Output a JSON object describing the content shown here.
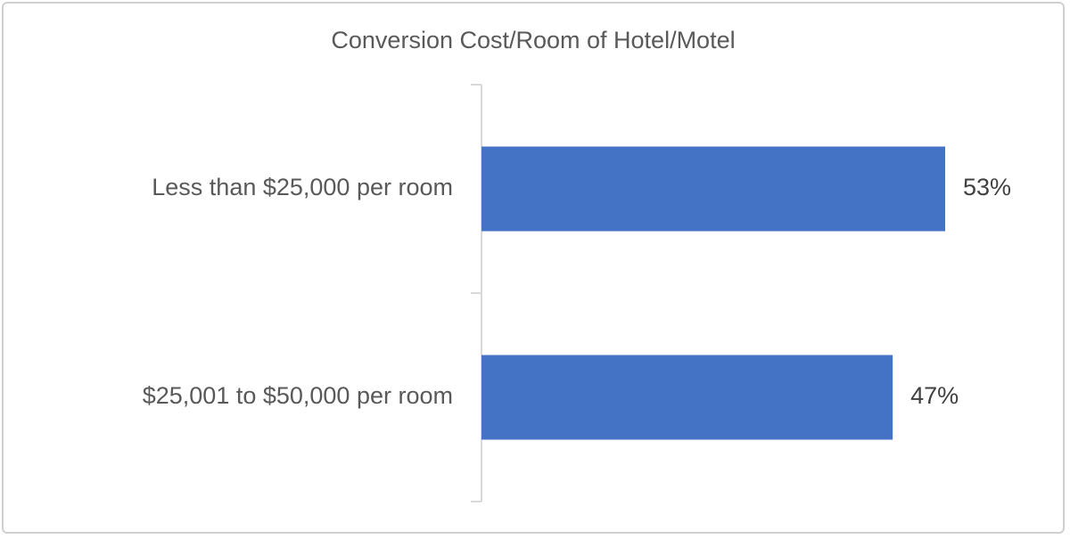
{
  "chart_data": {
    "type": "bar",
    "orientation": "horizontal",
    "title": "Conversion Cost/Room of Hotel/Motel",
    "categories": [
      "Less than $25,000 per room",
      "$25,001 to $50,000 per room"
    ],
    "values": [
      53,
      47
    ],
    "value_labels": [
      "53%",
      "47%"
    ],
    "unit": "%",
    "xlim": [
      0,
      60
    ],
    "grid": false,
    "legend": "none",
    "bar_color": "#4472C4"
  }
}
